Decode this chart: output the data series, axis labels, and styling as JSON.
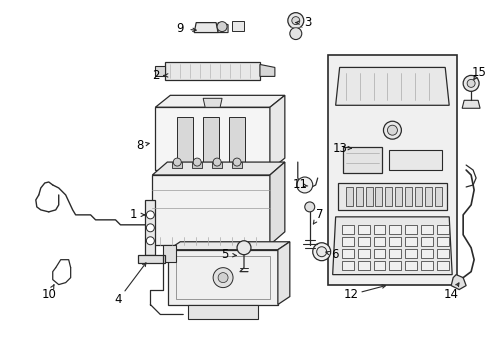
{
  "background_color": "#ffffff",
  "line_color": "#2a2a2a",
  "fig_width": 4.89,
  "fig_height": 3.6,
  "dpi": 100,
  "shading_color": "#e8e8e8",
  "box_bg": "#ebebeb"
}
